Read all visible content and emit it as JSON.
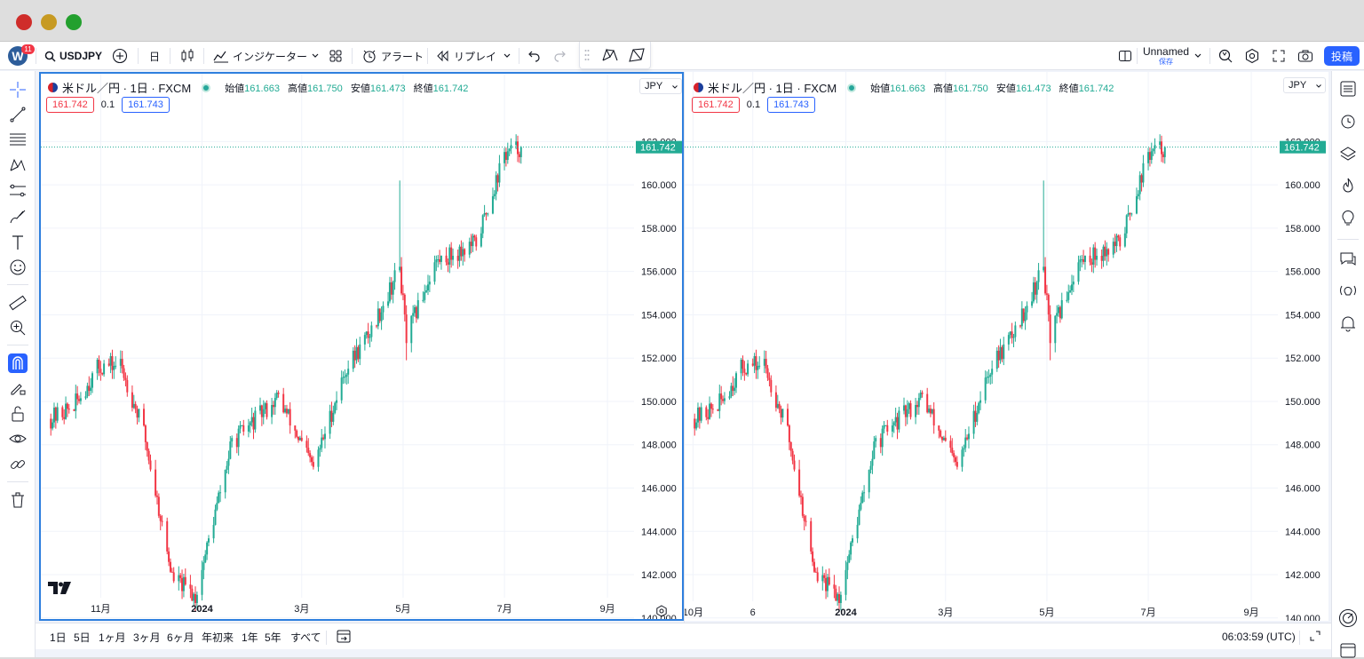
{
  "app": {
    "logo_letter": "W",
    "logo_badge": "11",
    "post_label": "投稿"
  },
  "toolbar": {
    "symbol": "USDJPY",
    "interval": "日",
    "indicators_label": "インジケーター",
    "alert_label": "アラート",
    "replay_label": "リプレイ",
    "layout_name": "Unnamed",
    "layout_sub": "保存"
  },
  "panes": [
    {
      "title": "米ドル／円 · 1日 · FXCM",
      "ohlc": [
        {
          "label": "始値",
          "value": "161.663"
        },
        {
          "label": "高値",
          "value": "161.750"
        },
        {
          "label": "安値",
          "value": "161.473"
        },
        {
          "label": "終値",
          "value": "161.742"
        }
      ],
      "sell": "161.742",
      "spread": "0.1",
      "buy": "161.743",
      "currency": "JPY",
      "last_price": "161.742",
      "x_labels": [
        "11月",
        "2024",
        "3月",
        "5月",
        "7月",
        "9月"
      ]
    },
    {
      "title": "米ドル／円 · 1日 · FXCM",
      "ohlc": [
        {
          "label": "始値",
          "value": "161.663"
        },
        {
          "label": "高値",
          "value": "161.750"
        },
        {
          "label": "安値",
          "value": "161.473"
        },
        {
          "label": "終値",
          "value": "161.742"
        }
      ],
      "sell": "161.742",
      "spread": "0.1",
      "buy": "161.743",
      "currency": "JPY",
      "last_price": "161.742",
      "x_labels": [
        "10月",
        "6",
        "2024",
        "3月",
        "5月",
        "7月",
        "9月"
      ]
    }
  ],
  "bottom": {
    "ranges": [
      "1日",
      "5日",
      "1ヶ月",
      "3ヶ月",
      "6ヶ月",
      "年初来",
      "1年",
      "5年",
      "すべて"
    ],
    "time": "06:03:59 (UTC)"
  },
  "colors": {
    "up": "#22ab94",
    "down": "#f23645",
    "accent": "#2962ff",
    "pane_border": "#2e7fde"
  },
  "chart_data": {
    "type": "candlestick",
    "symbol": "USDJPY",
    "source": "FXCM",
    "interval": "1日",
    "y_ticks": [
      "140.000",
      "142.000",
      "144.000",
      "146.000",
      "148.000",
      "150.000",
      "152.000",
      "154.000",
      "156.000",
      "158.000",
      "160.000",
      "162.000"
    ],
    "ylim": [
      139.5,
      163.0
    ],
    "last_price": 161.742,
    "price_path": [
      {
        "t": "2023-10-02",
        "close": 149.2
      },
      {
        "t": "2023-10-16",
        "close": 149.8
      },
      {
        "t": "2023-10-31",
        "close": 151.6
      },
      {
        "t": "2023-11-13",
        "close": 151.7
      },
      {
        "t": "2023-11-27",
        "close": 148.6
      },
      {
        "t": "2023-12-14",
        "close": 141.9
      },
      {
        "t": "2023-12-28",
        "close": 141.0
      },
      {
        "t": "2024-01-19",
        "close": 148.1
      },
      {
        "t": "2024-02-16",
        "close": 150.2
      },
      {
        "t": "2024-03-08",
        "close": 146.9
      },
      {
        "t": "2024-03-27",
        "close": 151.4
      },
      {
        "t": "2024-04-12",
        "close": 153.3
      },
      {
        "t": "2024-04-29",
        "close": 156.2
      },
      {
        "t": "2024-05-03",
        "close": 152.9
      },
      {
        "t": "2024-05-20",
        "close": 156.4
      },
      {
        "t": "2024-06-14",
        "close": 157.3
      },
      {
        "t": "2024-07-01",
        "close": 161.4
      },
      {
        "t": "2024-07-11",
        "close": 161.742
      }
    ]
  }
}
